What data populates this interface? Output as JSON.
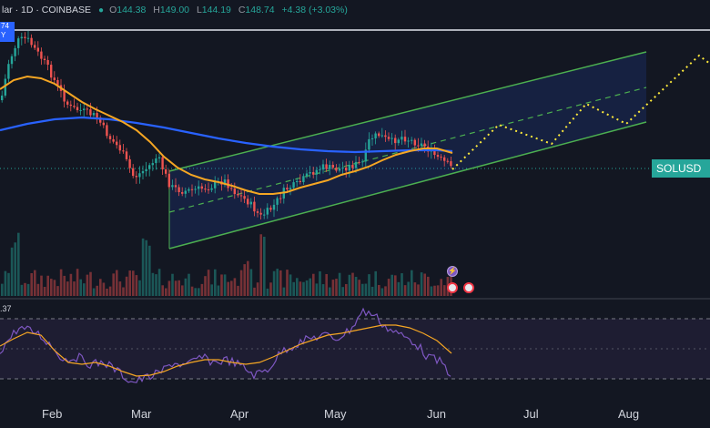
{
  "header": {
    "symbol_partial": "lar · 1D · COINBASE",
    "ohlc": [
      {
        "label": "O",
        "value": "144.38"
      },
      {
        "label": "H",
        "value": "149.00"
      },
      {
        "label": "L",
        "value": "144.19"
      },
      {
        "label": "C",
        "value": "148.74"
      }
    ],
    "change": "+4.38 (+3.03%)"
  },
  "left_tag": "74\nY",
  "price_badge": "SOLUSD",
  "rsi_value": ".37",
  "x_axis": [
    "Feb",
    "Mar",
    "Apr",
    "May",
    "Jun",
    "Jul",
    "Aug"
  ],
  "colors": {
    "background": "#131722",
    "up": "#26a69a",
    "down": "#ef5350",
    "ma_fast": "#f5a623",
    "ma_slow": "#2962ff",
    "channel": "#4caf50",
    "projection": "#ffeb3b",
    "rsi": "#7e57c2"
  },
  "icons": [
    "lightning-event-icon",
    "us-flag-event-icon",
    "us-flag-event-icon"
  ]
}
